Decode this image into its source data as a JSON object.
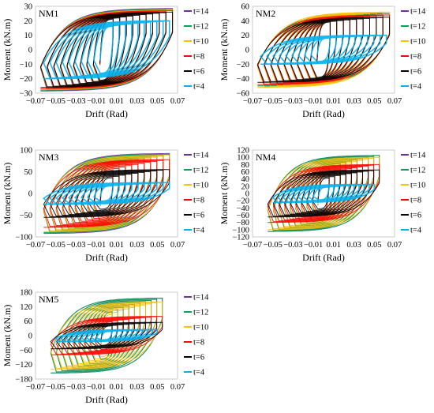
{
  "chart_data": [
    {
      "type": "line",
      "title": "NM1",
      "xlabel": "Drift (Rad)",
      "ylabel": "Moment (kN.m)",
      "xlim": [
        -0.07,
        0.07
      ],
      "ylim": [
        -30,
        30
      ],
      "xticks": [
        "−0.07",
        "−0.05",
        "−0.03",
        "−0.01",
        "0.01",
        "0.03",
        "0.05",
        "0.07"
      ],
      "yticks": [
        "−30",
        "−20",
        "−10",
        "0",
        "10",
        "20",
        "30"
      ],
      "legend_position": "right",
      "grid": false,
      "series": [
        {
          "name": "t=14",
          "color": "#7030a0",
          "peak_moment": 28.5,
          "yield_moment": 22.0,
          "max_drift": 0.065
        },
        {
          "name": "t=12",
          "color": "#00a651",
          "peak_moment": 28.0,
          "yield_moment": 21.5,
          "max_drift": 0.065
        },
        {
          "name": "t=10",
          "color": "#ffc000",
          "peak_moment": 27.5,
          "yield_moment": 21.0,
          "max_drift": 0.065
        },
        {
          "name": "t=8",
          "color": "#ff0000",
          "peak_moment": 27.0,
          "yield_moment": 20.5,
          "max_drift": 0.065
        },
        {
          "name": "t=6",
          "color": "#000000",
          "peak_moment": 26.0,
          "yield_moment": 19.5,
          "max_drift": 0.065
        },
        {
          "name": "t=4",
          "color": "#00b0f0",
          "peak_moment": 20.0,
          "yield_moment": 15.0,
          "max_drift": 0.062
        }
      ]
    },
    {
      "type": "line",
      "title": "NM2",
      "xlabel": "Drift (Rad)",
      "ylabel": "Moment (kN.m)",
      "xlim": [
        -0.07,
        0.07
      ],
      "ylim": [
        -60,
        60
      ],
      "xticks": [
        "−0.07",
        "−0.05",
        "−0.03",
        "−0.01",
        "0.01",
        "0.03",
        "0.05",
        "0.07"
      ],
      "yticks": [
        "−60",
        "−40",
        "−20",
        "0",
        "20",
        "40",
        "60"
      ],
      "legend_position": "right",
      "grid": false,
      "series": [
        {
          "name": "t=14",
          "color": "#7030a0",
          "peak_moment": 50.0,
          "yield_moment": 40.0,
          "max_drift": 0.065
        },
        {
          "name": "t=12",
          "color": "#00a651",
          "peak_moment": 50.0,
          "yield_moment": 40.0,
          "max_drift": 0.065
        },
        {
          "name": "t=10",
          "color": "#ffc000",
          "peak_moment": 52.0,
          "yield_moment": 40.0,
          "max_drift": 0.065
        },
        {
          "name": "t=8",
          "color": "#ff0000",
          "peak_moment": 48.0,
          "yield_moment": 38.0,
          "max_drift": 0.065
        },
        {
          "name": "t=6",
          "color": "#000000",
          "peak_moment": 45.0,
          "yield_moment": 36.0,
          "max_drift": 0.065
        },
        {
          "name": "t=4",
          "color": "#00b0f0",
          "peak_moment": 20.0,
          "yield_moment": 15.0,
          "max_drift": 0.062
        }
      ]
    },
    {
      "type": "line",
      "title": "NM3",
      "xlabel": "Drift (Rad)",
      "ylabel": "Moment (kN.m)",
      "xlim": [
        -0.07,
        0.07
      ],
      "ylim": [
        -100,
        100
      ],
      "xticks": [
        "−0.07",
        "−0.05",
        "−0.03",
        "−0.01",
        "0.01",
        "0.03",
        "0.05",
        "0.07"
      ],
      "yticks": [
        "−100",
        "−50",
        "0",
        "50",
        "100"
      ],
      "legend_position": "right",
      "grid": false,
      "series": [
        {
          "name": "t=14",
          "color": "#7030a0",
          "peak_moment": 92.0,
          "yield_moment": 55.0,
          "max_drift": 0.062
        },
        {
          "name": "t=12",
          "color": "#00a651",
          "peak_moment": 90.0,
          "yield_moment": 55.0,
          "max_drift": 0.062
        },
        {
          "name": "t=10",
          "color": "#ffc000",
          "peak_moment": 88.0,
          "yield_moment": 50.0,
          "max_drift": 0.062
        },
        {
          "name": "t=8",
          "color": "#ff0000",
          "peak_moment": 78.0,
          "yield_moment": 45.0,
          "max_drift": 0.062
        },
        {
          "name": "t=6",
          "color": "#000000",
          "peak_moment": 55.0,
          "yield_moment": 30.0,
          "max_drift": 0.062
        },
        {
          "name": "t=4",
          "color": "#00b0f0",
          "peak_moment": 25.0,
          "yield_moment": 15.0,
          "max_drift": 0.062
        }
      ]
    },
    {
      "type": "line",
      "title": "NM4",
      "xlabel": "Drift (Rad)",
      "ylabel": "Moment (kN.m)",
      "xlim": [
        -0.07,
        0.07
      ],
      "ylim": [
        -120,
        120
      ],
      "xticks": [
        "−0.07",
        "−0.05",
        "−0.03",
        "−0.01",
        "0.01",
        "0.03",
        "0.05",
        "0.07"
      ],
      "yticks": [
        "−120",
        "−100",
        "−80",
        "−60",
        "−40",
        "−20",
        "0",
        "20",
        "40",
        "60",
        "80",
        "100",
        "120"
      ],
      "legend_position": "right",
      "grid": false,
      "series": [
        {
          "name": "t=14",
          "color": "#7030a0",
          "peak_moment": 105.0,
          "yield_moment": 60.0,
          "max_drift": 0.055
        },
        {
          "name": "t=12",
          "color": "#00a651",
          "peak_moment": 105.0,
          "yield_moment": 60.0,
          "max_drift": 0.055
        },
        {
          "name": "t=10",
          "color": "#ffc000",
          "peak_moment": 100.0,
          "yield_moment": 55.0,
          "max_drift": 0.055
        },
        {
          "name": "t=8",
          "color": "#ff0000",
          "peak_moment": 80.0,
          "yield_moment": 45.0,
          "max_drift": 0.055
        },
        {
          "name": "t=6",
          "color": "#000000",
          "peak_moment": 65.0,
          "yield_moment": 35.0,
          "max_drift": 0.055
        },
        {
          "name": "t=4",
          "color": "#00b0f0",
          "peak_moment": 25.0,
          "yield_moment": 15.0,
          "max_drift": 0.05
        }
      ]
    },
    {
      "type": "line",
      "title": "NM5",
      "xlabel": "Drift (Rad)",
      "ylabel": "Moment (kN.m)",
      "xlim": [
        -0.07,
        0.07
      ],
      "ylim": [
        -180,
        180
      ],
      "xticks": [
        "−0.07",
        "−0.05",
        "−0.03",
        "−0.01",
        "0.01",
        "0.03",
        "0.05",
        "0.07"
      ],
      "yticks": [
        "−180",
        "−120",
        "−60",
        "0",
        "60",
        "120",
        "180"
      ],
      "legend_position": "right",
      "grid": false,
      "series": [
        {
          "name": "t=14",
          "color": "#7030a0",
          "peak_moment": 155.0,
          "yield_moment": 80.0,
          "max_drift": 0.055
        },
        {
          "name": "t=12",
          "color": "#00a651",
          "peak_moment": 155.0,
          "yield_moment": 80.0,
          "max_drift": 0.055
        },
        {
          "name": "t=10",
          "color": "#ffc000",
          "peak_moment": 140.0,
          "yield_moment": 70.0,
          "max_drift": 0.055
        },
        {
          "name": "t=8",
          "color": "#ff0000",
          "peak_moment": 80.0,
          "yield_moment": 50.0,
          "max_drift": 0.055
        },
        {
          "name": "t=6",
          "color": "#000000",
          "peak_moment": 55.0,
          "yield_moment": 35.0,
          "max_drift": 0.055
        },
        {
          "name": "t=4",
          "color": "#00b0f0",
          "peak_moment": 25.0,
          "yield_moment": 15.0,
          "max_drift": 0.05
        }
      ]
    }
  ]
}
